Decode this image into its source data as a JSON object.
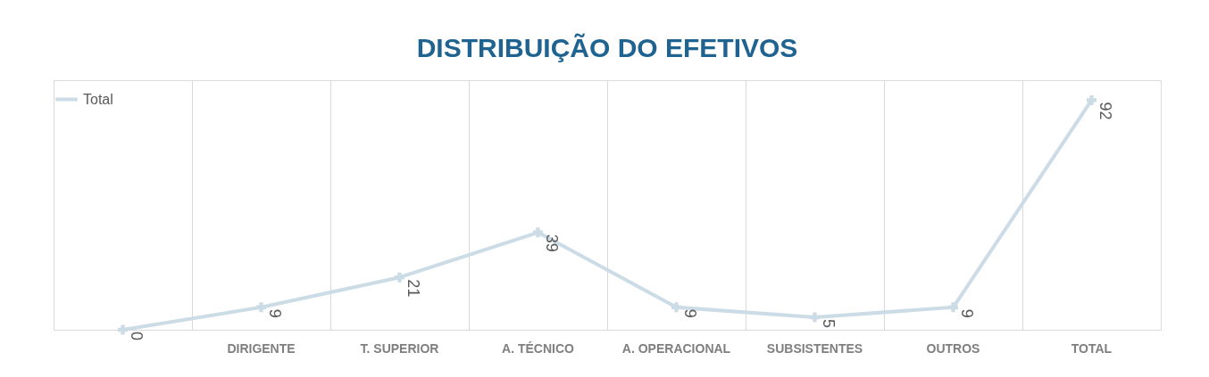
{
  "chart_data": {
    "type": "line",
    "title": "DISTRIBUIÇÃO DO EFETIVOS",
    "categories": [
      null,
      "DIRIGENTE",
      "T. SUPERIOR",
      "A. TÉCNICO",
      "A. OPERACIONAL",
      "SUBSISTENTES",
      "OUTROS",
      "TOTAL"
    ],
    "series": [
      {
        "name": "Total",
        "color": "#ccdce6",
        "values": [
          0,
          9,
          21,
          39,
          9,
          5,
          9,
          92
        ]
      }
    ],
    "data_labels": true,
    "marker": "cross",
    "legend": "top",
    "grid": "x",
    "tick_labels": "x"
  }
}
